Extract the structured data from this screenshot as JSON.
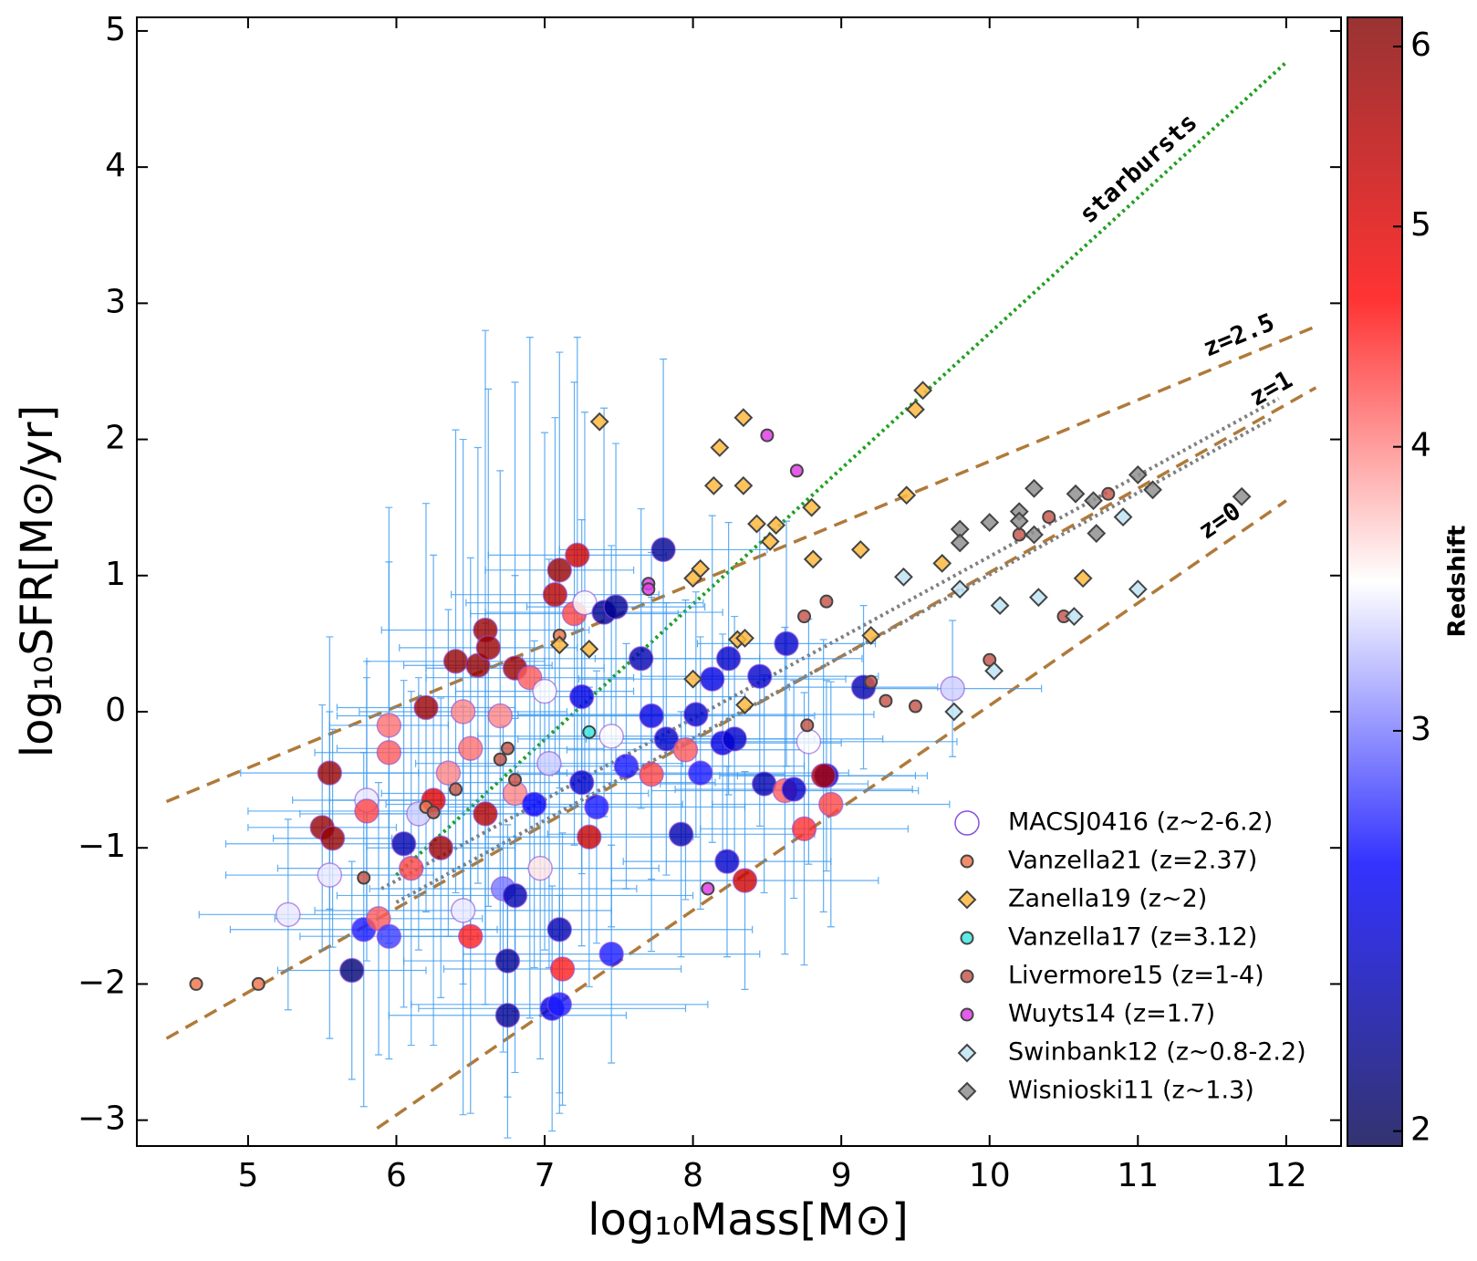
{
  "chart_data": {
    "type": "scatter",
    "xlabel": "log₁₀Mass[M⊙]",
    "ylabel": "log₁₀SFR[M⊙/yr]",
    "xlim": [
      4.25,
      12.37
    ],
    "ylim": [
      -3.19,
      5.1
    ],
    "xticks": [
      5,
      6,
      7,
      8,
      9,
      10,
      11,
      12
    ],
    "yticks": [
      {
        "value": -3,
        "label": "−3"
      },
      {
        "value": -2,
        "label": "−2"
      },
      {
        "value": -1,
        "label": "−1"
      },
      0,
      1,
      2,
      3,
      4,
      5
    ],
    "legend": "lower right",
    "colorbar": {
      "label": "Redshift",
      "lim": [
        1.97,
        6.18
      ],
      "ticks": [
        2,
        3,
        4,
        5,
        6
      ],
      "scale": "log",
      "colormap": [
        "#00004c",
        "#0000ff",
        "#ffffff",
        "#ff0000",
        "#800000"
      ]
    },
    "series": [
      {
        "name": "MACSJ0416 (z~2-6.2)",
        "marker": "circle",
        "color": "#8a4fd8",
        "errorbar_color": "#3a9af0",
        "x": [
          5.5,
          5.57,
          5.55,
          5.55,
          5.8,
          5.8,
          5.27,
          5.7,
          5.78,
          5.88,
          5.95,
          5.95,
          5.95,
          6.05,
          6.15,
          6.1,
          6.2,
          6.25,
          6.3,
          6.35,
          6.4,
          6.45,
          6.5,
          6.5,
          6.45,
          6.55,
          6.6,
          6.62,
          6.6,
          6.7,
          6.72,
          6.75,
          6.75,
          6.8,
          6.8,
          6.8,
          6.9,
          6.93,
          6.97,
          7.0,
          7.03,
          7.07,
          7.1,
          7.12,
          7.1,
          7.05,
          7.1,
          7.2,
          7.22,
          7.27,
          7.25,
          7.25,
          7.3,
          7.35,
          7.4,
          7.48,
          7.45,
          7.55,
          7.45,
          7.65,
          7.72,
          7.72,
          7.8,
          7.82,
          7.92,
          7.95,
          8.02,
          8.05,
          8.13,
          8.2,
          8.23,
          8.24,
          8.28,
          8.45,
          8.48,
          8.63,
          8.62,
          8.68,
          8.75,
          8.78,
          8.9,
          8.93,
          8.88,
          8.35,
          9.15,
          9.75
        ],
        "y": [
          -0.85,
          -0.93,
          -0.45,
          -1.2,
          -0.65,
          -0.73,
          -1.49,
          -1.9,
          -1.6,
          -1.52,
          -1.65,
          -0.3,
          -0.1,
          -0.97,
          -0.75,
          -1.15,
          0.03,
          -0.65,
          -1.0,
          -0.45,
          0.37,
          0.0,
          -0.27,
          -1.65,
          -1.46,
          0.34,
          0.6,
          0.47,
          -0.75,
          -0.03,
          -1.3,
          -1.83,
          -2.23,
          0.32,
          -1.35,
          -0.6,
          0.25,
          -0.68,
          -1.15,
          0.15,
          -0.38,
          0.86,
          1.04,
          -1.89,
          -1.6,
          -2.18,
          -2.15,
          0.72,
          1.15,
          0.8,
          0.11,
          -0.52,
          -0.92,
          -0.7,
          0.73,
          0.77,
          -0.18,
          -0.4,
          -1.78,
          0.39,
          -0.46,
          -0.03,
          1.19,
          -0.2,
          -0.9,
          -0.28,
          -0.02,
          -0.45,
          0.24,
          -0.23,
          -1.1,
          0.39,
          -0.2,
          0.26,
          -0.53,
          0.5,
          -0.58,
          -0.57,
          -0.86,
          -0.22,
          -0.47,
          -0.68,
          -0.47,
          -1.24,
          0.18,
          0.17
        ],
        "z": [
          5.9,
          5.9,
          5.9,
          3.4,
          3.4,
          4.3,
          3.4,
          2.1,
          2.7,
          4.2,
          2.8,
          4.2,
          4.1,
          2.3,
          3.3,
          4.3,
          5.8,
          5.0,
          5.8,
          4.0,
          5.9,
          4.0,
          4.1,
          4.5,
          3.4,
          5.9,
          5.8,
          5.8,
          5.5,
          4.0,
          3.0,
          2.2,
          2.2,
          5.8,
          2.3,
          4.0,
          4.2,
          2.6,
          3.6,
          3.5,
          3.3,
          5.5,
          5.9,
          4.5,
          2.3,
          2.5,
          2.7,
          4.3,
          5.2,
          3.5,
          2.5,
          2.4,
          5.3,
          2.7,
          2.2,
          2.2,
          3.5,
          2.7,
          2.7,
          2.3,
          4.3,
          2.5,
          2.2,
          2.4,
          2.3,
          4.2,
          2.4,
          2.7,
          2.5,
          2.5,
          2.4,
          2.4,
          2.4,
          2.4,
          2.3,
          2.4,
          4.2,
          2.4,
          4.4,
          3.5,
          2.4,
          4.3,
          5.6,
          5.2,
          2.3,
          3.3
        ],
        "xerr": [
          0.5,
          0.4,
          0.6,
          0.7,
          0.5,
          0.8,
          0.6,
          0.5,
          0.9,
          0.7,
          0.6,
          0.5,
          0.4,
          1.2,
          0.8,
          0.9,
          0.6,
          0.7,
          0.5,
          0.8,
          0.6,
          0.7,
          0.9,
          0.6,
          1.0,
          0.5,
          0.7,
          0.6,
          0.8,
          1.1,
          0.9,
          0.7,
          0.8,
          0.6,
          1.2,
          0.9,
          0.7,
          1.0,
          0.8,
          0.6,
          0.9,
          0.7,
          0.5,
          0.8,
          1.3,
          0.9,
          1.0,
          0.7,
          0.6,
          0.8,
          1.1,
          0.9,
          0.7,
          1.0,
          0.8,
          0.6,
          0.9,
          1.2,
          1.0,
          0.8,
          0.9,
          1.1,
          0.7,
          1.0,
          0.9,
          0.8,
          1.2,
          1.0,
          0.9,
          0.8,
          0.7,
          0.9,
          1.0,
          0.8,
          0.7,
          0.6,
          0.9,
          0.8,
          0.7,
          1.0,
          0.6,
          0.8,
          0.7,
          0.9,
          0.5,
          0.6
        ],
        "yerr": [
          0.9,
          0.8,
          1.0,
          1.2,
          0.9,
          1.1,
          0.7,
          0.8,
          1.3,
          1.0,
          0.9,
          1.4,
          1.6,
          1.2,
          1.0,
          1.3,
          1.5,
          1.8,
          1.1,
          1.2,
          1.7,
          2.0,
          1.4,
          1.3,
          1.5,
          1.6,
          2.2,
          1.9,
          1.4,
          1.8,
          1.2,
          1.0,
          0.9,
          2.1,
          1.3,
          1.6,
          2.5,
          1.2,
          1.4,
          1.9,
          1.5,
          1.3,
          1.6,
          1.0,
          1.2,
          0.9,
          0.8,
          1.7,
          1.6,
          1.4,
          1.3,
          1.2,
          1.1,
          1.0,
          1.5,
          1.2,
          1.4,
          0.9,
          0.8,
          1.1,
          1.3,
          1.2,
          1.4,
          1.0,
          0.9,
          1.1,
          0.9,
          1.0,
          1.2,
          0.8,
          0.7,
          1.0,
          0.9,
          1.1,
          0.8,
          0.9,
          1.2,
          0.8,
          1.0,
          0.9,
          0.7,
          0.9,
          1.0,
          0.8,
          0.6,
          0.5
        ]
      },
      {
        "name": "Vanzella21 (z=2.37)",
        "marker": "circle",
        "color": "#f07850",
        "x": [
          4.65,
          5.07,
          7.1,
          6.2
        ],
        "y": [
          -2.0,
          -2.0,
          0.56,
          -0.7
        ]
      },
      {
        "name": "Zanella19 (z~2)",
        "marker": "diamond",
        "color": "#ffb840",
        "x": [
          7.37,
          8.34,
          8.18,
          8.14,
          8.34,
          9.55,
          9.5,
          8.43,
          8.56,
          8.52,
          8.8,
          8.81,
          9.44,
          9.13,
          9.68,
          8.05,
          8.0,
          7.1,
          7.3,
          8.3,
          8.35,
          9.2,
          10.63,
          8.0,
          8.35
        ],
        "y": [
          2.13,
          2.16,
          1.94,
          1.66,
          1.66,
          2.36,
          2.22,
          1.38,
          1.37,
          1.25,
          1.5,
          1.12,
          1.59,
          1.19,
          1.09,
          1.05,
          0.98,
          0.49,
          0.46,
          0.53,
          0.54,
          0.56,
          0.98,
          0.24,
          0.05
        ]
      },
      {
        "name": "Vanzella17 (z=3.12)",
        "marker": "circle",
        "color": "#40e8e0",
        "x": [
          7.3
        ],
        "y": [
          -0.15
        ]
      },
      {
        "name": "Livermore15 (z=1-4)",
        "marker": "circle",
        "color": "#c85a50",
        "x": [
          6.7,
          6.75,
          6.8,
          8.75,
          8.9,
          9.2,
          9.3,
          9.5,
          8.77,
          10.0,
          10.2,
          10.4,
          10.5,
          10.8,
          5.78,
          6.25,
          6.4
        ],
        "y": [
          -0.35,
          -0.27,
          -0.5,
          0.7,
          0.81,
          0.22,
          0.08,
          0.04,
          -0.1,
          0.38,
          1.3,
          1.43,
          0.7,
          1.6,
          -1.22,
          -0.74,
          -0.57
        ]
      },
      {
        "name": "Wuyts14 (z=1.7)",
        "marker": "circle",
        "color": "#e040e8",
        "x": [
          8.5,
          8.7,
          7.7,
          7.7,
          8.1
        ],
        "y": [
          2.03,
          1.77,
          0.94,
          0.9,
          -1.3
        ]
      },
      {
        "name": "Swinbank12 (z~0.8-2.2)",
        "marker": "diamond",
        "color": "#c0e4f4",
        "x": [
          9.42,
          9.8,
          10.07,
          10.33,
          10.57,
          10.9,
          11.0,
          10.03,
          9.76
        ],
        "y": [
          0.99,
          0.9,
          0.78,
          0.84,
          0.7,
          1.43,
          0.9,
          0.3,
          0.0
        ]
      },
      {
        "name": "Wisnioski11 (z~1.3)",
        "marker": "diamond",
        "color": "#909090",
        "x": [
          9.8,
          9.8,
          10.0,
          10.2,
          10.2,
          10.3,
          10.3,
          10.58,
          10.7,
          10.72,
          11.0,
          11.1,
          11.7
        ],
        "y": [
          1.34,
          1.24,
          1.39,
          1.47,
          1.4,
          1.64,
          1.3,
          1.6,
          1.55,
          1.31,
          1.74,
          1.63,
          1.58
        ]
      }
    ],
    "lines": [
      {
        "label": "starbursts",
        "style": "dotted",
        "color": "#22a022",
        "x": [
          6.0,
          12.0
        ],
        "y": [
          -1.2,
          4.77
        ]
      },
      {
        "label": "z=2.5",
        "style": "dashed",
        "color": "#b07a3a",
        "x": [
          4.45,
          12.2
        ],
        "y": [
          -0.66,
          2.83
        ]
      },
      {
        "label": "z=1",
        "style": "dashed",
        "color": "#b07a3a",
        "x": [
          4.45,
          12.2
        ],
        "y": [
          -2.4,
          2.38
        ]
      },
      {
        "label": "z=0",
        "style": "dashed",
        "color": "#b07a3a",
        "x": [
          5.87,
          12.0
        ],
        "y": [
          -3.06,
          1.55
        ]
      },
      {
        "style": "dotted",
        "color": "#808080",
        "x": [
          5.9,
          11.95
        ],
        "y": [
          -1.3,
          2.3
        ]
      },
      {
        "style": "dotted",
        "color": "#808080",
        "x": [
          6.0,
          11.9
        ],
        "y": [
          -1.4,
          2.15
        ]
      }
    ]
  }
}
